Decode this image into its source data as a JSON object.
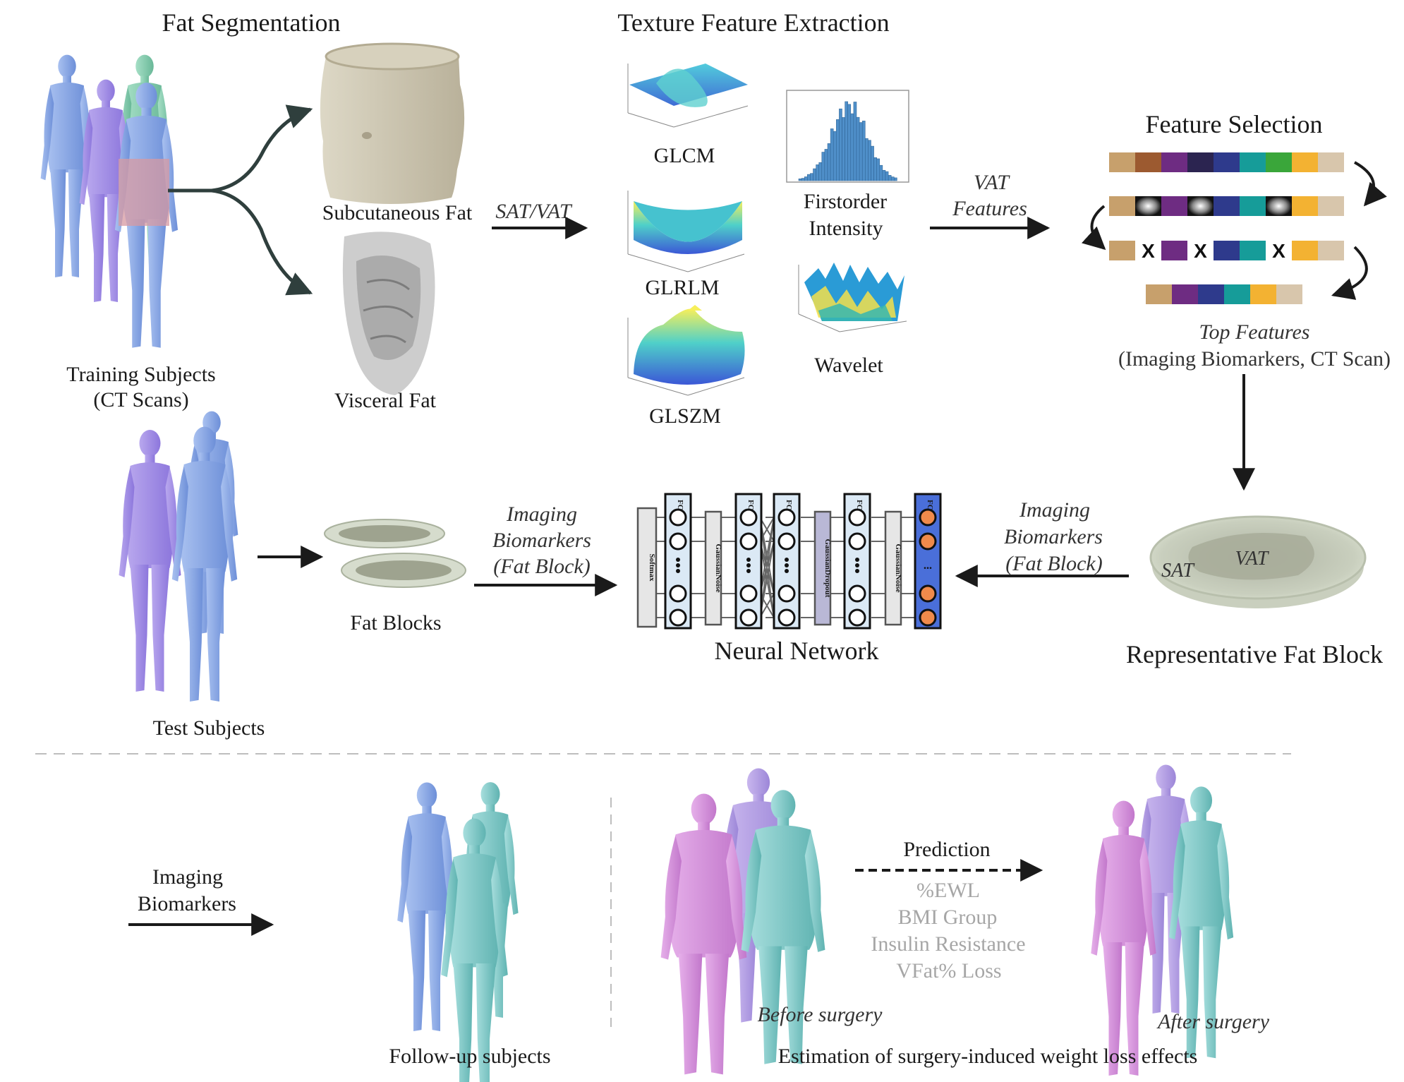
{
  "sections": {
    "fat_segmentation": "Fat Segmentation",
    "texture_feature_extraction": "Texture Feature Extraction",
    "feature_selection": "Feature Selection"
  },
  "labels": {
    "training_subjects_1": "Training Subjects",
    "training_subjects_2": "(CT Scans)",
    "subcutaneous_fat": "Subcutaneous Fat",
    "visceral_fat": "Visceral Fat",
    "sat_vat": "SAT/VAT",
    "glcm": "GLCM",
    "glrlm": "GLRLM",
    "glszm": "GLSZM",
    "firstorder_1": "Firstorder",
    "firstorder_2": "Intensity",
    "wavelet": "Wavelet",
    "vat_features_1": "VAT",
    "vat_features_2": "Features",
    "top_features_1": "Top Features",
    "top_features_2": "(Imaging Biomarkers, CT Scan)",
    "test_subjects": "Test Subjects",
    "fat_blocks": "Fat Blocks",
    "imaging_biomarkers_left_1": "Imaging",
    "imaging_biomarkers_left_2": "Biomarkers",
    "imaging_biomarkers_left_3": "(Fat Block)",
    "neural_network": "Neural Network",
    "imaging_biomarkers_right_1": "Imaging",
    "imaging_biomarkers_right_2": "Biomarkers",
    "imaging_biomarkers_right_3": "(Fat Block)",
    "representative_fat_block": "Representative Fat Block",
    "sat": "SAT",
    "vat": "VAT",
    "imaging_biomarkers_bottom_1": "Imaging",
    "imaging_biomarkers_bottom_2": "Biomarkers",
    "follow_up_subjects": "Follow-up subjects",
    "prediction": "Prediction",
    "outcome_1": "%EWL",
    "outcome_2": "BMI Group",
    "outcome_3": "Insulin Resistance",
    "outcome_4": "VFat% Loss",
    "before_surgery": "Before surgery",
    "after_surgery": "After surgery",
    "estimation": "Estimation of surgery-induced weight loss effects"
  },
  "nn_layers": {
    "softmax": "Softmax",
    "fc": "FC",
    "gaussian_noise": "GaussianNoise",
    "gaussian_dropout": "GaussianDropout",
    "ellipsis": "..."
  },
  "feature_rows": [
    [
      "#c7a06c",
      "#9c5a30",
      "#6e2c82",
      "#2b2450",
      "#2e3a8c",
      "#169c99",
      "#3aa63a",
      "#f3b232",
      "#d8c6ac"
    ],
    [
      "#c7a06c",
      "removed",
      "#6e2c82",
      "removed",
      "#2e3a8c",
      "#169c99",
      "removed",
      "#f3b232",
      "#d8c6ac"
    ],
    [
      "#c7a06c",
      "x",
      "#6e2c82",
      "x",
      "#2e3a8c",
      "#169c99",
      "x",
      "#f3b232",
      "#d8c6ac"
    ],
    [
      "#c7a06c",
      "#6e2c82",
      "#2e3a8c",
      "#169c99",
      "#f3b232",
      "#d8c6ac"
    ]
  ],
  "colors": {
    "body_blue": "#7f9fe0",
    "body_purple": "#9a86e4",
    "body_green": "#7fc9a8",
    "body_teal": "#7ac7c6",
    "body_pink": "#d08ad6",
    "sat_fat": "#cfc8b3",
    "visceral_fat": "#b5b5b5",
    "fat_block": "#d6dccd",
    "fc_layer_fill": "#dbe9f5",
    "output_layer": "#4a6fd9",
    "output_node": "#f08a4b"
  }
}
